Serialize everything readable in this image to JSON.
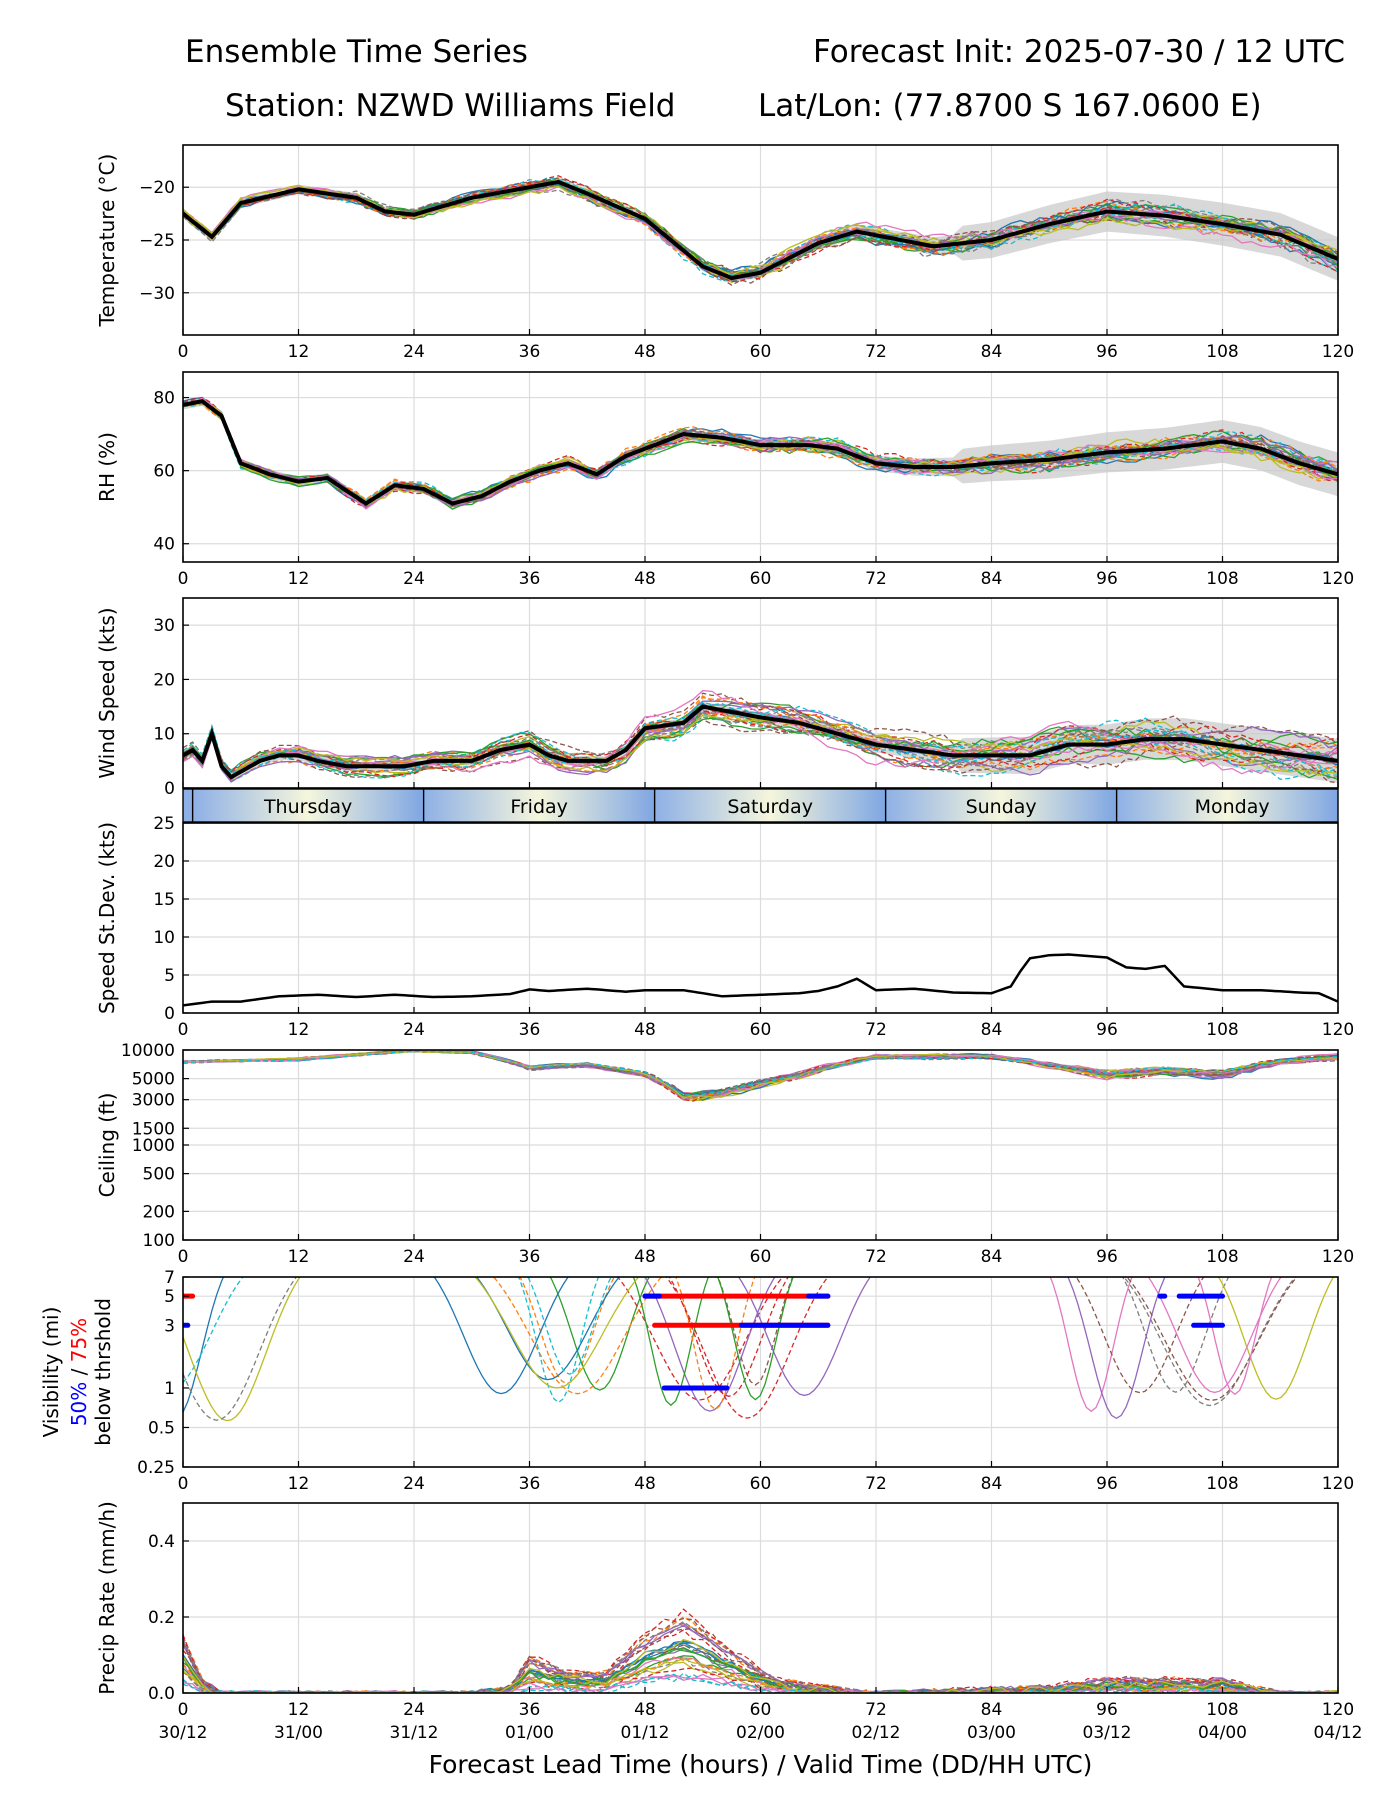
{
  "header": {
    "title": "Ensemble Time Series",
    "init": "Forecast Init: 2025-07-30 / 12 UTC",
    "station": "Station: NZWD Williams Field",
    "latlon": "Lat/Lon: (77.8700 S 167.0600 E)"
  },
  "xaxis": {
    "ticks": [
      0,
      12,
      24,
      36,
      48,
      60,
      72,
      84,
      96,
      108,
      120
    ],
    "valid_times": [
      "30/12",
      "31/00",
      "31/12",
      "01/00",
      "01/12",
      "02/00",
      "02/12",
      "03/00",
      "03/12",
      "04/00",
      "04/12"
    ],
    "label": "Forecast Lead Time (hours) / Valid Time (DD/HH UTC)"
  },
  "day_bar": {
    "days": [
      {
        "label": "Thursday",
        "start": 1,
        "end": 25
      },
      {
        "label": "Friday",
        "start": 25,
        "end": 49
      },
      {
        "label": "Saturday",
        "start": 49,
        "end": 73
      },
      {
        "label": "Sunday",
        "start": 73,
        "end": 97
      },
      {
        "label": "Monday",
        "start": 97,
        "end": 121
      }
    ]
  },
  "member_colors": [
    "#1f77b4",
    "#ff7f0e",
    "#2ca02c",
    "#d62728",
    "#9467bd",
    "#8c564b",
    "#e377c2",
    "#7f7f7f",
    "#bcbd22",
    "#17becf"
  ],
  "chart_data": [
    {
      "type": "line",
      "id": "temperature",
      "ylabel": "Temperature (°C)",
      "ylim": [
        -34,
        -16
      ],
      "yticks": [
        -30,
        -25,
        -20
      ],
      "grid": true,
      "members": 30,
      "spread_band": true,
      "series": [
        {
          "name": "Ensemble mean",
          "x": [
            0,
            3,
            6,
            12,
            18,
            21,
            24,
            30,
            36,
            39,
            42,
            48,
            54,
            57,
            60,
            66,
            70,
            78,
            84,
            90,
            96,
            102,
            108,
            114,
            120
          ],
          "values": [
            -22.5,
            -24.7,
            -21.5,
            -20.2,
            -21.0,
            -22.3,
            -22.6,
            -21.0,
            -20.0,
            -19.5,
            -20.6,
            -23.0,
            -27.5,
            -28.6,
            -28.1,
            -25.3,
            -24.2,
            -25.6,
            -25.0,
            -23.5,
            -22.3,
            -22.7,
            -23.5,
            -24.5,
            -26.8
          ]
        }
      ]
    },
    {
      "type": "line",
      "id": "rh",
      "ylabel": "RH (%)",
      "ylim": [
        35,
        87
      ],
      "yticks": [
        40,
        60,
        80
      ],
      "grid": true,
      "members": 30,
      "spread_band": true,
      "series": [
        {
          "name": "Ensemble mean",
          "x": [
            0,
            2,
            4,
            6,
            9,
            12,
            15,
            19,
            22,
            25,
            28,
            31,
            34,
            37,
            40,
            43,
            46,
            49,
            52,
            56,
            60,
            65,
            68,
            72,
            76,
            80,
            84,
            90,
            96,
            102,
            108,
            112,
            116,
            120
          ],
          "values": [
            78,
            79,
            75,
            62,
            59,
            57,
            58,
            51,
            56,
            55,
            51,
            53,
            57,
            60,
            62,
            59,
            64,
            67,
            70,
            69,
            67,
            67,
            66,
            62,
            61,
            61,
            62,
            63,
            65,
            66,
            68,
            66,
            62,
            59
          ]
        }
      ]
    },
    {
      "type": "line",
      "id": "wind",
      "ylabel": "Wind Speed (kts)",
      "ylim": [
        0,
        35
      ],
      "yticks": [
        0,
        10,
        20,
        30
      ],
      "grid": true,
      "members": 30,
      "spread_band": true,
      "series": [
        {
          "name": "Ensemble mean",
          "x": [
            0,
            1,
            2,
            3,
            4,
            5,
            8,
            10,
            12,
            14,
            17,
            20,
            23,
            26,
            30,
            33,
            36,
            38,
            40,
            44,
            46,
            48,
            52,
            54,
            57,
            60,
            64,
            68,
            72,
            76,
            80,
            84,
            88,
            92,
            96,
            100,
            104,
            108,
            112,
            116,
            120
          ],
          "values": [
            6,
            7,
            5,
            10,
            4,
            2,
            5,
            6,
            6,
            5,
            4,
            4,
            4,
            5,
            5,
            7,
            8,
            6,
            5,
            5,
            7,
            11,
            12,
            15,
            14,
            13,
            12,
            10,
            8,
            7,
            6,
            6,
            6,
            8,
            8,
            9,
            9,
            8,
            7,
            6,
            5
          ]
        }
      ]
    },
    {
      "type": "line",
      "id": "speed_stdev",
      "ylabel": "Speed St.Dev. (kts)",
      "ylim": [
        0,
        25
      ],
      "yticks": [
        0,
        5,
        10,
        15,
        20,
        25
      ],
      "grid": true,
      "series": [
        {
          "name": "Speed St.Dev.",
          "x": [
            0,
            3,
            6,
            10,
            14,
            18,
            22,
            26,
            30,
            34,
            36,
            38,
            42,
            46,
            48,
            52,
            56,
            60,
            64,
            66,
            68,
            70,
            72,
            76,
            80,
            84,
            86,
            87,
            88,
            90,
            92,
            94,
            96,
            98,
            100,
            102,
            104,
            108,
            112,
            116,
            118,
            120
          ],
          "values": [
            1.0,
            1.5,
            1.5,
            2.2,
            2.4,
            2.1,
            2.4,
            2.1,
            2.2,
            2.5,
            3.1,
            2.9,
            3.2,
            2.8,
            3.0,
            3.0,
            2.2,
            2.4,
            2.6,
            2.9,
            3.5,
            4.5,
            3.0,
            3.2,
            2.7,
            2.6,
            3.5,
            5.5,
            7.2,
            7.6,
            7.7,
            7.5,
            7.3,
            6.0,
            5.8,
            6.2,
            3.5,
            3.0,
            3.0,
            2.7,
            2.6,
            1.5
          ]
        }
      ]
    },
    {
      "type": "line",
      "id": "ceiling",
      "ylabel": "Ceiling (ft)",
      "yscale": "log",
      "ylim": [
        100,
        10000
      ],
      "yticks": [
        100,
        200,
        500,
        1000,
        1500,
        3000,
        5000,
        10000
      ],
      "grid": true,
      "members": 30,
      "series": [
        {
          "name": "Ensemble mean",
          "x": [
            0,
            12,
            24,
            30,
            36,
            42,
            48,
            52,
            56,
            60,
            64,
            68,
            72,
            84,
            90,
            96,
            102,
            108,
            114,
            120
          ],
          "values": [
            7500,
            8000,
            9800,
            9500,
            6500,
            7000,
            5500,
            3200,
            3500,
            4500,
            5500,
            7000,
            8500,
            8500,
            7000,
            5500,
            6000,
            5500,
            7500,
            8500
          ]
        }
      ]
    },
    {
      "type": "line",
      "id": "visibility",
      "ylabel": "Visibility (mi)",
      "ylabel_pct50": "50%",
      "ylabel_slash": " / ",
      "ylabel_pct75": "75%",
      "ylabel_sub": "below thrshold",
      "yscale": "log",
      "ylim": [
        0.25,
        7
      ],
      "yticks": [
        0.25,
        0.5,
        1,
        3,
        5,
        7
      ],
      "grid": true,
      "members": 30,
      "threshold_segments": [
        {
          "pct": "75%",
          "color": "#ff0000",
          "y": 5,
          "start": 0,
          "end": 1
        },
        {
          "pct": "50%",
          "color": "#0000ff",
          "y": 3,
          "start": 0,
          "end": 0.5
        },
        {
          "pct": "75%",
          "color": "#ff0000",
          "y": 5,
          "start": 48,
          "end": 67
        },
        {
          "pct": "50%",
          "color": "#0000ff",
          "y": 5,
          "start": 48,
          "end": 49.5
        },
        {
          "pct": "50%",
          "color": "#0000ff",
          "y": 5,
          "start": 65,
          "end": 67
        },
        {
          "pct": "75%",
          "color": "#ff0000",
          "y": 3,
          "start": 49,
          "end": 67
        },
        {
          "pct": "50%",
          "color": "#0000ff",
          "y": 3,
          "start": 58,
          "end": 67
        },
        {
          "pct": "50%",
          "color": "#0000ff",
          "y": 1,
          "start": 50,
          "end": 56.5
        },
        {
          "pct": "50%",
          "color": "#0000ff",
          "y": 5,
          "start": 101.5,
          "end": 102
        },
        {
          "pct": "50%",
          "color": "#0000ff",
          "y": 5,
          "start": 103.5,
          "end": 108
        },
        {
          "pct": "50%",
          "color": "#0000ff",
          "y": 3,
          "start": 105,
          "end": 108
        }
      ]
    },
    {
      "type": "line",
      "id": "precip",
      "ylabel": "Precip Rate (mm/h)",
      "ylim": [
        0,
        0.5
      ],
      "yticks": [
        0.0,
        0.2,
        0.4
      ],
      "grid": true,
      "members": 30,
      "series": [
        {
          "name": "Ensemble mean",
          "x": [
            0,
            2,
            4,
            30,
            34,
            36,
            38,
            40,
            44,
            48,
            52,
            54,
            58,
            62,
            66,
            72,
            90,
            96,
            100,
            108,
            114,
            120
          ],
          "values": [
            0.08,
            0.02,
            0.0,
            0.0,
            0.01,
            0.05,
            0.04,
            0.03,
            0.03,
            0.08,
            0.11,
            0.09,
            0.05,
            0.02,
            0.01,
            0.0,
            0.01,
            0.02,
            0.02,
            0.02,
            0.0,
            0.0
          ]
        }
      ]
    }
  ]
}
